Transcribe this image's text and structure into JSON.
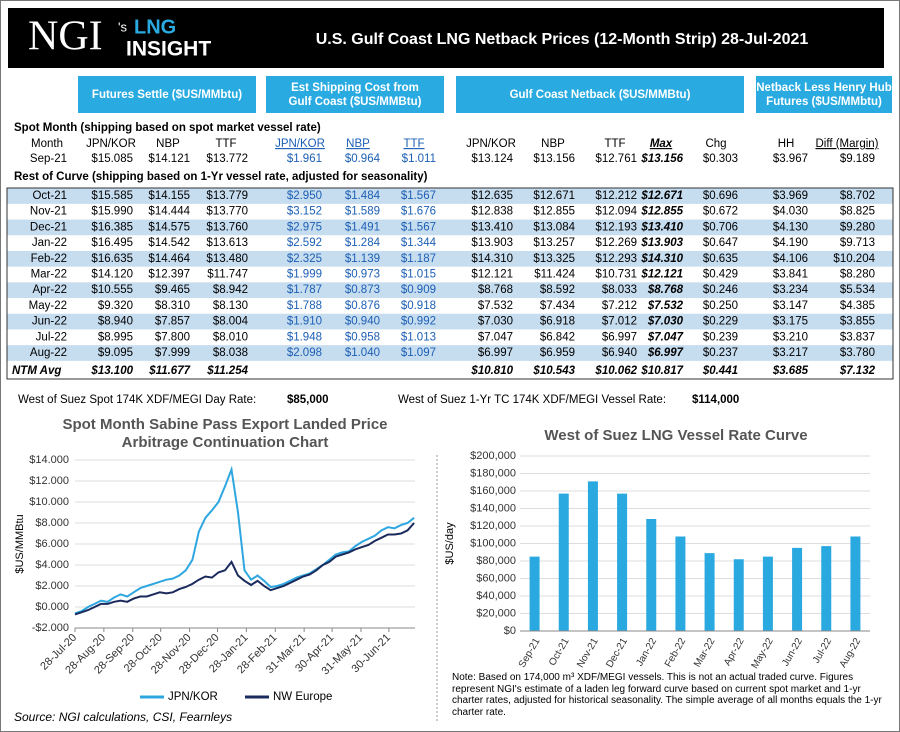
{
  "header": {
    "brand": "NGI",
    "brand_suffix": "'s",
    "product_line1": "LNG",
    "product_line2": "INSIGHT",
    "title": "U.S. Gulf Coast LNG Netback Prices (12-Month Strip) 28-Jul-2021"
  },
  "group_headers": [
    [
      "Futures Settle ($US/MMbtu)"
    ],
    [
      "Est Shipping Cost from",
      "Gulf Coast ($US/MMBtu)"
    ],
    [
      "Gulf Coast Netback ($US/MMBtu)"
    ],
    [
      "Netback Less Henry Hub",
      "Futures ($US/MMbtu)"
    ]
  ],
  "table": {
    "spot_label": "Spot Month (shipping based on spot market vessel rate)",
    "columns": [
      "Month",
      "JPN/KOR",
      "NBP",
      "TTF",
      "JPN/KOR",
      "NBP",
      "TTF",
      "JPN/KOR",
      "NBP",
      "TTF",
      "Max",
      "Chg",
      "HH",
      "Diff (Margin)"
    ],
    "spot_row": [
      "Sep-21",
      "$15.085",
      "$14.121",
      "$13.772",
      "$1.961",
      "$0.964",
      "$1.011",
      "$13.124",
      "$13.156",
      "$12.761",
      "$13.156",
      "$0.303",
      "$3.967",
      "$9.189"
    ],
    "rest_label": "Rest of Curve (shipping based on 1-Yr vessel rate, adjusted for seasonality)",
    "rows": [
      [
        "Oct-21",
        "$15.585",
        "$14.155",
        "$13.779",
        "$2.950",
        "$1.484",
        "$1.567",
        "$12.635",
        "$12.671",
        "$12.212",
        "$12.671",
        "$0.696",
        "$3.969",
        "$8.702"
      ],
      [
        "Nov-21",
        "$15.990",
        "$14.444",
        "$13.770",
        "$3.152",
        "$1.589",
        "$1.676",
        "$12.838",
        "$12.855",
        "$12.094",
        "$12.855",
        "$0.672",
        "$4.030",
        "$8.825"
      ],
      [
        "Dec-21",
        "$16.385",
        "$14.575",
        "$13.760",
        "$2.975",
        "$1.491",
        "$1.567",
        "$13.410",
        "$13.084",
        "$12.193",
        "$13.410",
        "$0.706",
        "$4.130",
        "$9.280"
      ],
      [
        "Jan-22",
        "$16.495",
        "$14.542",
        "$13.613",
        "$2.592",
        "$1.284",
        "$1.344",
        "$13.903",
        "$13.257",
        "$12.269",
        "$13.903",
        "$0.647",
        "$4.190",
        "$9.713"
      ],
      [
        "Feb-22",
        "$16.635",
        "$14.464",
        "$13.480",
        "$2.325",
        "$1.139",
        "$1.187",
        "$14.310",
        "$13.325",
        "$12.293",
        "$14.310",
        "$0.635",
        "$4.106",
        "$10.204"
      ],
      [
        "Mar-22",
        "$14.120",
        "$12.397",
        "$11.747",
        "$1.999",
        "$0.973",
        "$1.015",
        "$12.121",
        "$11.424",
        "$10.731",
        "$12.121",
        "$0.429",
        "$3.841",
        "$8.280"
      ],
      [
        "Apr-22",
        "$10.555",
        "$9.465",
        "$8.942",
        "$1.787",
        "$0.873",
        "$0.909",
        "$8.768",
        "$8.592",
        "$8.033",
        "$8.768",
        "$0.246",
        "$3.234",
        "$5.534"
      ],
      [
        "May-22",
        "$9.320",
        "$8.310",
        "$8.130",
        "$1.788",
        "$0.876",
        "$0.918",
        "$7.532",
        "$7.434",
        "$7.212",
        "$7.532",
        "$0.250",
        "$3.147",
        "$4.385"
      ],
      [
        "Jun-22",
        "$8.940",
        "$7.857",
        "$8.004",
        "$1.910",
        "$0.940",
        "$0.992",
        "$7.030",
        "$6.918",
        "$7.012",
        "$7.030",
        "$0.229",
        "$3.175",
        "$3.855"
      ],
      [
        "Jul-22",
        "$8.995",
        "$7.800",
        "$8.010",
        "$1.948",
        "$0.958",
        "$1.013",
        "$7.047",
        "$6.842",
        "$6.997",
        "$7.047",
        "$0.239",
        "$3.210",
        "$3.837"
      ],
      [
        "Aug-22",
        "$9.095",
        "$7.999",
        "$8.038",
        "$2.098",
        "$1.040",
        "$1.097",
        "$6.997",
        "$6.959",
        "$6.940",
        "$6.997",
        "$0.237",
        "$3.217",
        "$3.780"
      ]
    ],
    "avg_row": [
      "NTM Avg",
      "$13.100",
      "$11.677",
      "$11.254",
      null,
      null,
      null,
      "$10.810",
      "$10.543",
      "$10.062",
      "$10.817",
      "$0.441",
      "$3.685",
      "$7.132"
    ]
  },
  "rates": [
    {
      "label": "West of Suez Spot 174K XDF/MEGI Day Rate:",
      "value": "$85,000"
    },
    {
      "label": "West of Suez 1-Yr TC 174K XDF/MEGI Vessel Rate:",
      "value": "$114,000"
    }
  ],
  "chart_data": [
    {
      "type": "line",
      "title": "Spot Month Sabine Pass Export Landed Price Arbitrage Continuation Chart",
      "y_label": "$US/MMBtu",
      "x": [
        "2020-07-28",
        "2020-08-04",
        "2020-08-11",
        "2020-08-18",
        "2020-08-25",
        "2020-09-01",
        "2020-09-08",
        "2020-09-15",
        "2020-09-22",
        "2020-09-29",
        "2020-10-06",
        "2020-10-13",
        "2020-10-20",
        "2020-10-27",
        "2020-11-03",
        "2020-11-10",
        "2020-11-17",
        "2020-11-24",
        "2020-12-01",
        "2020-12-08",
        "2020-12-15",
        "2020-12-22",
        "2020-12-29",
        "2021-01-05",
        "2021-01-12",
        "2021-01-19",
        "2021-01-26",
        "2021-02-02",
        "2021-02-09",
        "2021-02-16",
        "2021-02-23",
        "2021-03-02",
        "2021-03-09",
        "2021-03-16",
        "2021-03-23",
        "2021-03-30",
        "2021-04-06",
        "2021-04-13",
        "2021-04-20",
        "2021-04-27",
        "2021-05-04",
        "2021-05-11",
        "2021-05-18",
        "2021-05-25",
        "2021-06-01",
        "2021-06-08",
        "2021-06-15",
        "2021-06-22",
        "2021-06-29",
        "2021-07-06",
        "2021-07-13",
        "2021-07-20",
        "2021-07-27"
      ],
      "series": [
        {
          "name": "JPN/KOR",
          "color": "#2ea7e0",
          "values": [
            -0.6,
            -0.4,
            0.0,
            0.3,
            0.6,
            0.5,
            0.9,
            1.2,
            1.0,
            1.4,
            1.8,
            2.0,
            2.2,
            2.4,
            2.6,
            2.7,
            3.0,
            3.5,
            4.5,
            7.2,
            8.5,
            9.2,
            10.0,
            11.5,
            13.1,
            9.0,
            3.5,
            2.6,
            3.0,
            2.5,
            1.9,
            2.0,
            2.2,
            2.5,
            2.8,
            3.0,
            3.2,
            3.6,
            4.0,
            4.5,
            5.0,
            5.2,
            5.3,
            5.8,
            6.2,
            6.5,
            6.8,
            7.3,
            7.6,
            7.5,
            7.8,
            8.0,
            8.5
          ]
        },
        {
          "name": "NW Europe",
          "color": "#1b2a5c",
          "values": [
            -0.7,
            -0.5,
            -0.3,
            0.0,
            0.3,
            0.3,
            0.5,
            0.6,
            0.5,
            0.8,
            1.0,
            1.0,
            1.2,
            1.4,
            1.3,
            1.4,
            1.7,
            1.9,
            2.2,
            2.6,
            2.9,
            2.8,
            3.3,
            3.5,
            4.3,
            3.0,
            2.5,
            2.1,
            2.5,
            2.0,
            1.6,
            1.8,
            2.0,
            2.3,
            2.6,
            2.9,
            3.1,
            3.5,
            4.0,
            4.3,
            4.8,
            5.0,
            5.2,
            5.5,
            5.7,
            5.9,
            6.3,
            6.6,
            6.9,
            6.9,
            7.0,
            7.3,
            8.0
          ]
        }
      ],
      "xlim": [
        "2020-07-28",
        "2021-07-28"
      ],
      "xticks": [
        {
          "value": "2020-07-28",
          "label": "28-Jul-20"
        },
        {
          "value": "2020-08-28",
          "label": "28-Aug-20"
        },
        {
          "value": "2020-09-28",
          "label": "28-Sep-20"
        },
        {
          "value": "2020-10-28",
          "label": "28-Oct-20"
        },
        {
          "value": "2020-11-28",
          "label": "28-Nov-20"
        },
        {
          "value": "2020-12-28",
          "label": "28-Dec-20"
        },
        {
          "value": "2021-01-28",
          "label": "28-Jan-21"
        },
        {
          "value": "2021-02-28",
          "label": "28-Feb-21"
        },
        {
          "value": "2021-03-31",
          "label": "31-Mar-21"
        },
        {
          "value": "2021-04-30",
          "label": "30-Apr-21"
        },
        {
          "value": "2021-05-31",
          "label": "31-May-21"
        },
        {
          "value": "2021-06-30",
          "label": "30-Jun-21"
        }
      ],
      "ylim": [
        -2,
        14
      ],
      "yticks": [
        {
          "value": -2,
          "label": "-$2.000"
        },
        {
          "value": 0,
          "label": "$0.000"
        },
        {
          "value": 2,
          "label": "$2.000"
        },
        {
          "value": 4,
          "label": "$4.000"
        },
        {
          "value": 6,
          "label": "$6.000"
        },
        {
          "value": 8,
          "label": "$8.000"
        },
        {
          "value": 10,
          "label": "$10.000"
        },
        {
          "value": 12,
          "label": "$12.000"
        },
        {
          "value": 14,
          "label": "$14.000"
        }
      ],
      "grid": true,
      "legend": "bottom"
    },
    {
      "type": "bar",
      "title": "West of Suez LNG Vessel Rate Curve",
      "y_label": "$US/day",
      "categories": [
        "Sep-21",
        "Oct-21",
        "Nov-21",
        "Dec-21",
        "Jan-22",
        "Feb-22",
        "Mar-22",
        "Apr-22",
        "May-22",
        "Jun-22",
        "Jul-22",
        "Aug-22"
      ],
      "values": [
        85000,
        157000,
        171000,
        157000,
        128000,
        108000,
        89000,
        82000,
        85000,
        95000,
        97000,
        108000
      ],
      "color": "#2aa8e0",
      "ylim": [
        0,
        200000
      ],
      "yticks": [
        {
          "value": 0,
          "label": "$0"
        },
        {
          "value": 20000,
          "label": "$20,000"
        },
        {
          "value": 40000,
          "label": "$40,000"
        },
        {
          "value": 60000,
          "label": "$60,000"
        },
        {
          "value": 80000,
          "label": "$80,000"
        },
        {
          "value": 100000,
          "label": "$100,000"
        },
        {
          "value": 120000,
          "label": "$120,000"
        },
        {
          "value": 140000,
          "label": "$140,000"
        },
        {
          "value": 160000,
          "label": "$160,000"
        },
        {
          "value": 180000,
          "label": "$180,000"
        },
        {
          "value": 200000,
          "label": "$200,000"
        }
      ],
      "grid": true
    }
  ],
  "note": "Note: Based on 174,000 m³ XDF/MEGI vessels.  This is not an actual traded curve. Figures represent NGI's estimate of a laden leg forward curve based on current spot market and 1-yr charter rates, adjusted for historical seasonality. The simple average of all months equals the 1-yr charter rate.",
  "source": "Source: NGI calculations, CSI, Fearnleys"
}
